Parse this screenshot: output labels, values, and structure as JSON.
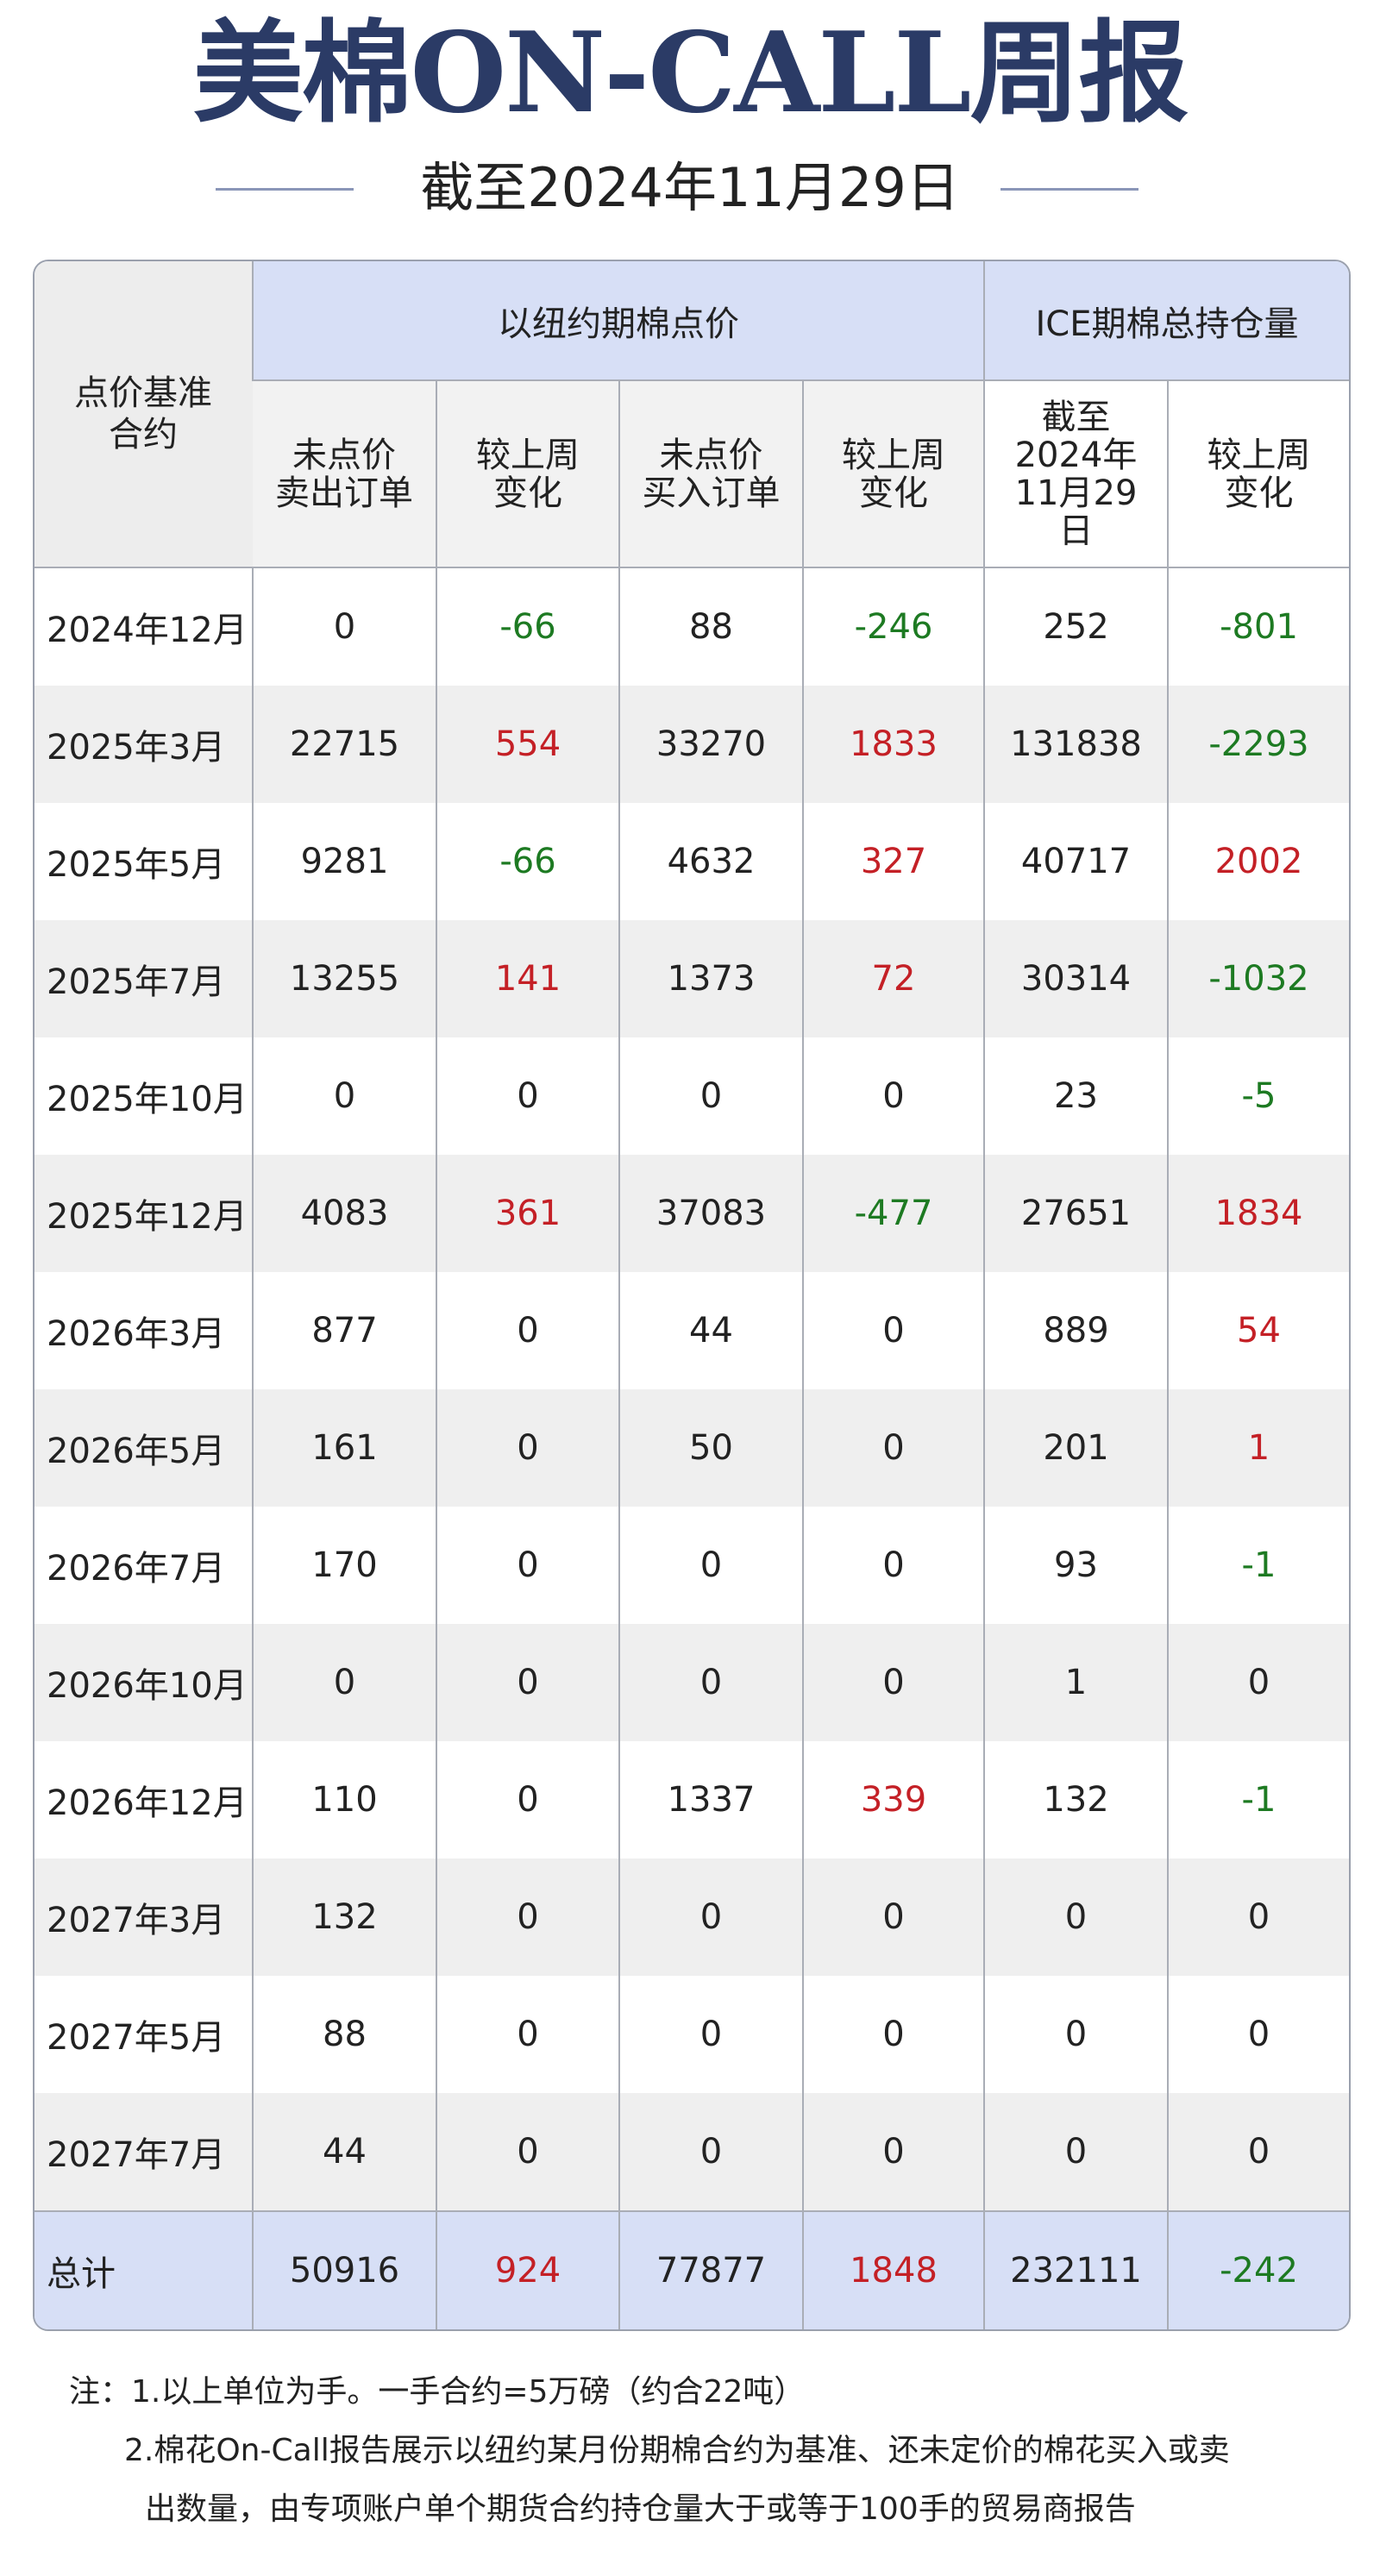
{
  "header": {
    "title": "美棉ON-CALL周报",
    "subtitle": "截至2024年11月29日"
  },
  "table": {
    "corner": [
      "点价基准",
      "合约"
    ],
    "groups": [
      "以纽约期棉点价",
      "ICE期棉总持仓量"
    ],
    "columns": [
      [
        "未点价",
        "卖出订单"
      ],
      [
        "较上周",
        "变化"
      ],
      [
        "未点价",
        "买入订单"
      ],
      [
        "较上周",
        "变化"
      ],
      [
        "截至",
        "2024年",
        "11月29",
        "日"
      ],
      [
        "较上周",
        "变化"
      ]
    ],
    "rows": [
      [
        "2024年12月",
        0,
        -66,
        88,
        -246,
        252,
        -801
      ],
      [
        "2025年3月",
        22715,
        554,
        33270,
        1833,
        131838,
        -2293
      ],
      [
        "2025年5月",
        9281,
        -66,
        4632,
        327,
        40717,
        2002
      ],
      [
        "2025年7月",
        13255,
        141,
        1373,
        72,
        30314,
        -1032
      ],
      [
        "2025年10月",
        0,
        0,
        0,
        0,
        23,
        -5
      ],
      [
        "2025年12月",
        4083,
        361,
        37083,
        -477,
        27651,
        1834
      ],
      [
        "2026年3月",
        877,
        0,
        44,
        0,
        889,
        54
      ],
      [
        "2026年5月",
        161,
        0,
        50,
        0,
        201,
        1
      ],
      [
        "2026年7月",
        170,
        0,
        0,
        0,
        93,
        -1
      ],
      [
        "2026年10月",
        0,
        0,
        0,
        0,
        1,
        0
      ],
      [
        "2026年12月",
        110,
        0,
        1337,
        339,
        132,
        -1
      ],
      [
        "2027年3月",
        132,
        0,
        0,
        0,
        0,
        0
      ],
      [
        "2027年5月",
        88,
        0,
        0,
        0,
        0,
        0
      ],
      [
        "2027年7月",
        44,
        0,
        0,
        0,
        0,
        0
      ]
    ],
    "total": [
      "总计",
      50916,
      924,
      77877,
      1848,
      232111,
      -242
    ]
  },
  "notes": [
    "注：1.以上单位为手。一手合约=5万磅（约合22吨）",
    "2.棉花On-Call报告展示以纽约某月份期棉合约为基准、还未定价的棉花买入或卖出数量，由专项账户单个期货合约持仓量大于或等于100手的贸易商报告"
  ]
}
